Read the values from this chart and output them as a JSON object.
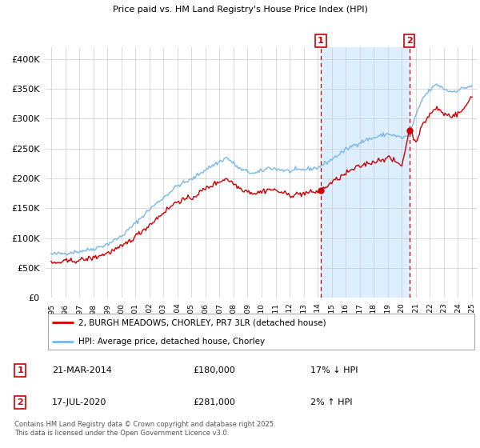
{
  "title": "2, BURGH MEADOWS, CHORLEY, PR7 3LR",
  "subtitle": "Price paid vs. HM Land Registry's House Price Index (HPI)",
  "legend_line1": "2, BURGH MEADOWS, CHORLEY, PR7 3LR (detached house)",
  "legend_line2": "HPI: Average price, detached house, Chorley",
  "footer": "Contains HM Land Registry data © Crown copyright and database right 2025.\nThis data is licensed under the Open Government Licence v3.0.",
  "sale1_date_label": "21-MAR-2014",
  "sale1_price": 180000,
  "sale1_pct": "17% ↓ HPI",
  "sale1_year": 2014.22,
  "sale2_date_label": "17-JUL-2020",
  "sale2_price": 281000,
  "sale2_pct": "2% ↑ HPI",
  "sale2_year": 2020.54,
  "hpi_color": "#7ab8e8",
  "hpi_fill_color": "#ddeeff",
  "price_color": "#cc0000",
  "marker_box_color": "#cc0000",
  "yticks": [
    0,
    50000,
    100000,
    150000,
    200000,
    250000,
    300000,
    350000,
    400000
  ],
  "xlim_start": 1994.6,
  "xlim_end": 2025.4,
  "hpi_anchors_x": [
    1995.0,
    1995.5,
    1996.0,
    1997.0,
    1998.0,
    1999.0,
    2000.0,
    2001.0,
    2002.0,
    2003.0,
    2004.0,
    2005.0,
    2006.0,
    2007.0,
    2007.5,
    2008.5,
    2009.5,
    2010.0,
    2010.5,
    2011.0,
    2012.0,
    2013.0,
    2014.0,
    2015.0,
    2016.0,
    2016.5,
    2017.5,
    2018.0,
    2019.0,
    2020.0,
    2020.5,
    2021.0,
    2021.5,
    2022.0,
    2022.5,
    2023.0,
    2023.5,
    2024.0,
    2024.5,
    2025.0
  ],
  "hpi_anchors_y": [
    73000,
    74000,
    75000,
    78000,
    82000,
    90000,
    103000,
    125000,
    148000,
    168000,
    188000,
    198000,
    215000,
    228000,
    235000,
    215000,
    208000,
    212000,
    218000,
    216000,
    212000,
    215000,
    218000,
    232000,
    248000,
    255000,
    265000,
    268000,
    275000,
    268000,
    272000,
    305000,
    335000,
    348000,
    358000,
    350000,
    345000,
    348000,
    352000,
    355000
  ],
  "price_anchors_x": [
    1995.0,
    1995.5,
    1996.0,
    1997.0,
    1998.0,
    1999.0,
    2000.0,
    2001.0,
    2002.0,
    2003.0,
    2004.0,
    2005.0,
    2006.0,
    2007.0,
    2007.5,
    2008.5,
    2009.5,
    2010.0,
    2010.5,
    2011.0,
    2012.0,
    2013.0,
    2014.0,
    2014.22,
    2015.0,
    2016.0,
    2016.5,
    2017.5,
    2018.0,
    2019.0,
    2020.0,
    2020.54,
    2021.0,
    2021.5,
    2022.0,
    2022.5,
    2023.0,
    2023.5,
    2024.0,
    2024.5,
    2025.0
  ],
  "price_anchors_y": [
    58000,
    59000,
    61000,
    63000,
    67000,
    75000,
    85000,
    103000,
    122000,
    143000,
    162000,
    167000,
    183000,
    195000,
    200000,
    183000,
    175000,
    178000,
    182000,
    180000,
    172000,
    175000,
    178000,
    180000,
    193000,
    208000,
    215000,
    225000,
    228000,
    235000,
    222000,
    281000,
    262000,
    290000,
    308000,
    318000,
    308000,
    305000,
    308000,
    318000,
    340000
  ]
}
